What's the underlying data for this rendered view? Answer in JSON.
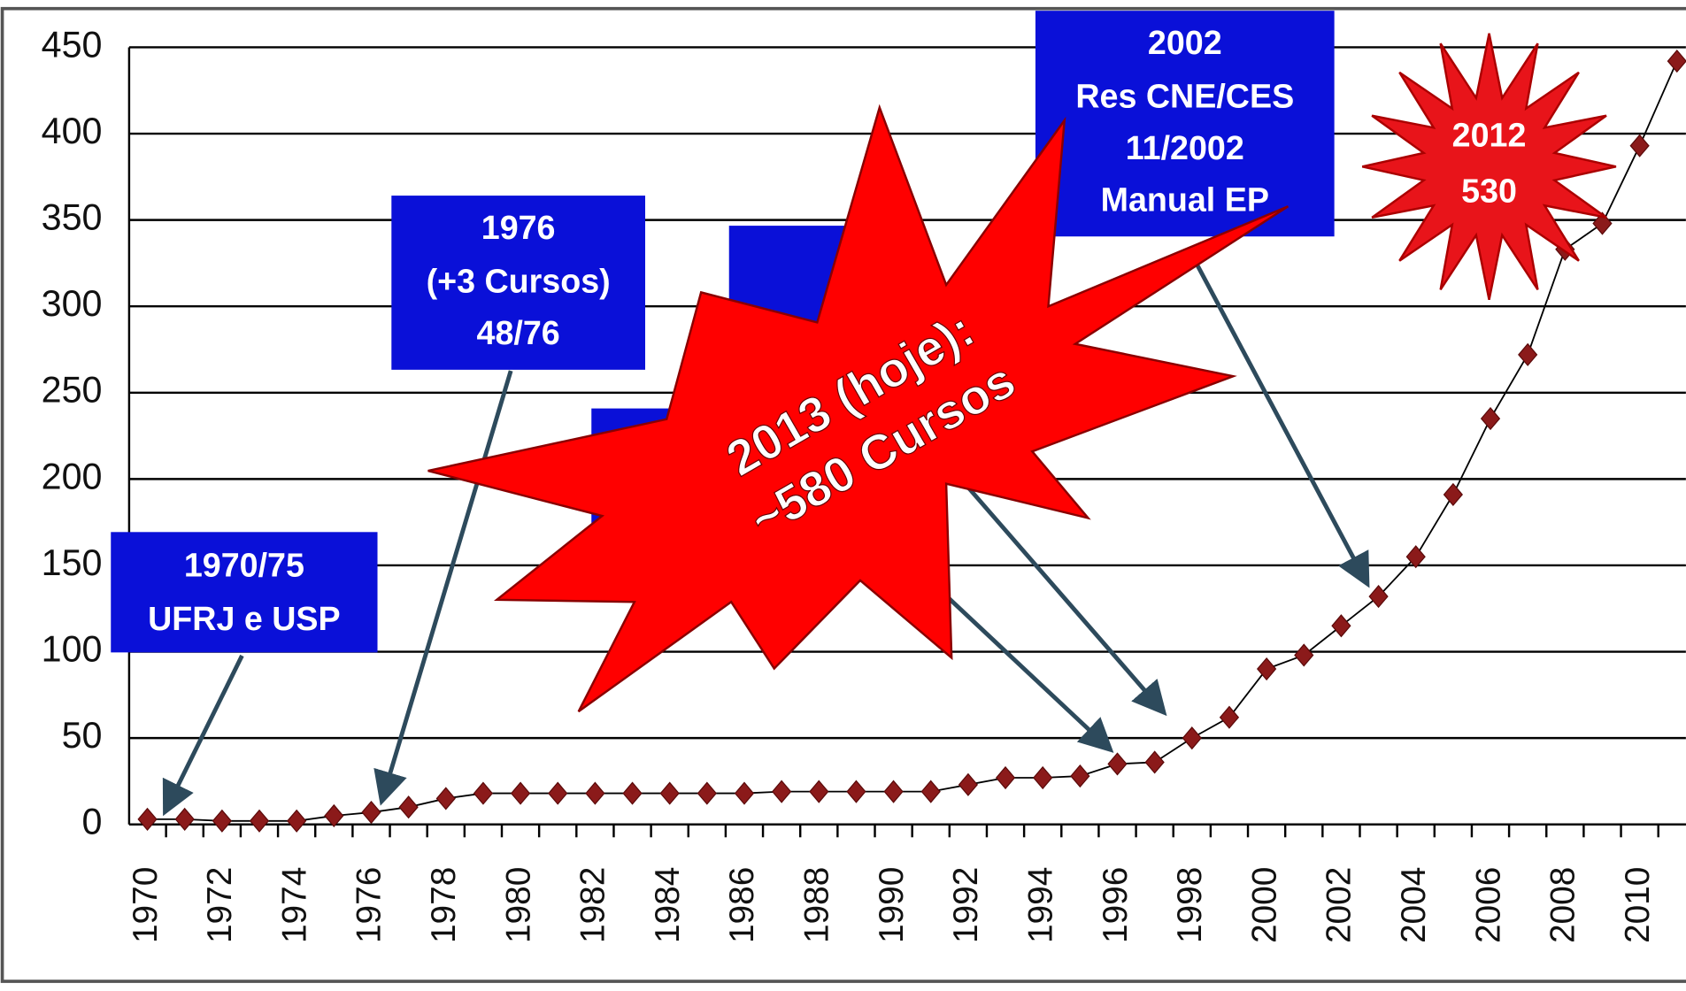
{
  "chart_data": {
    "type": "line",
    "categories": [
      "1970",
      null,
      "1972",
      null,
      "1974",
      null,
      "1976",
      null,
      "1978",
      null,
      "1980",
      null,
      "1982",
      null,
      "1984",
      null,
      "1986",
      null,
      "1988",
      null,
      "1990",
      null,
      "1992",
      null,
      "1994",
      null,
      "1996",
      null,
      "1998",
      null,
      "2000",
      null,
      "2002",
      null,
      "2004",
      null,
      "2006",
      null,
      "2008",
      null,
      "2010",
      null
    ],
    "series": [
      {
        "name": null,
        "color": "#8b1a1a",
        "values": [
          3,
          3,
          2,
          2,
          2,
          5,
          7,
          10,
          15,
          18,
          18,
          18,
          18,
          18,
          18,
          18,
          18,
          19,
          19,
          19,
          19,
          19,
          23,
          27,
          27,
          28,
          35,
          36,
          50,
          62,
          90,
          98,
          115,
          132,
          155,
          191,
          235,
          272,
          333,
          348,
          393,
          442
        ]
      }
    ],
    "ylim": [
      0,
      450
    ],
    "yticks": [
      0,
      50,
      100,
      150,
      200,
      250,
      300,
      350,
      400,
      450
    ],
    "grid": true,
    "annotations": [
      {
        "lines": [
          "1970/75",
          "UFRJ e USP"
        ]
      },
      {
        "lines": [
          "1976",
          "(+3 Cursos)",
          "48/76"
        ]
      },
      {
        "lines": [
          "2002",
          "Res CNE/CES",
          "11/2002",
          "Manual EP"
        ]
      },
      {
        "lines": [
          "2012",
          "530"
        ]
      },
      {
        "lines": [
          "2013 (hoje):",
          "~580 Cursos"
        ]
      }
    ]
  }
}
